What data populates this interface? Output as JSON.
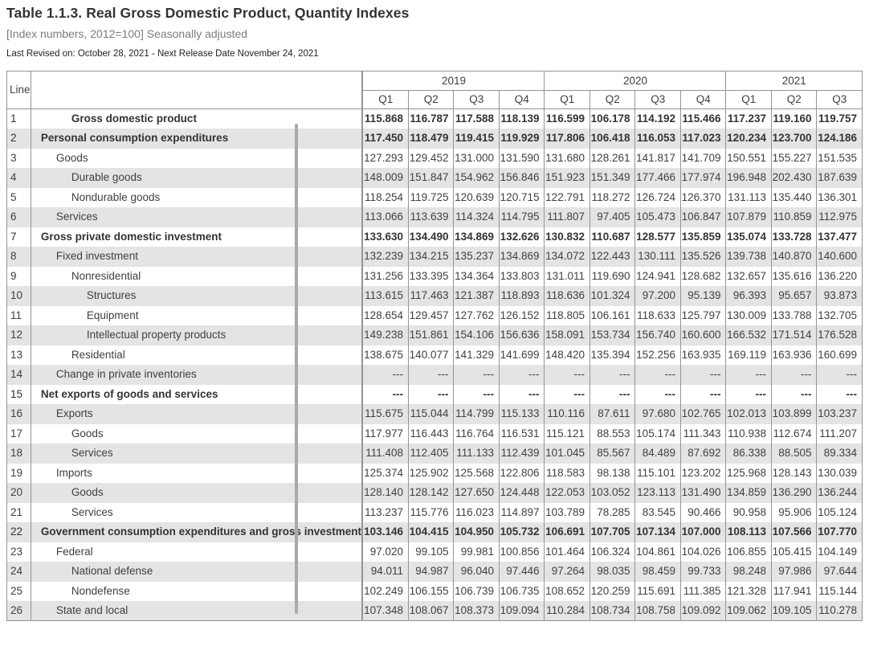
{
  "page": {
    "title": "Table 1.1.3. Real Gross Domestic Product, Quantity Indexes",
    "subtitle": "[Index numbers, 2012=100] Seasonally adjusted",
    "revision_note": "Last Revised on: October 28, 2021 - Next Release Date November 24, 2021"
  },
  "colors": {
    "stripe": "#e4e4e4",
    "border": "#949494",
    "text": "#404040",
    "subtitle_text": "#7c7c7c",
    "scroll_thumb": "#a9a9a9"
  },
  "table": {
    "line_header": "Line",
    "year_groups": [
      {
        "year": "2019",
        "quarters": [
          "Q1",
          "Q2",
          "Q3",
          "Q4"
        ]
      },
      {
        "year": "2020",
        "quarters": [
          "Q1",
          "Q2",
          "Q3",
          "Q4"
        ]
      },
      {
        "year": "2021",
        "quarters": [
          "Q1",
          "Q2",
          "Q3"
        ]
      }
    ],
    "rows": [
      {
        "line": "1",
        "label": "Gross domestic product",
        "indent": 2,
        "bold": true,
        "values": [
          "115.868",
          "116.787",
          "117.588",
          "118.139",
          "116.599",
          "106.178",
          "114.192",
          "115.466",
          "117.237",
          "119.160",
          "119.757"
        ]
      },
      {
        "line": "2",
        "label": "Personal consumption expenditures",
        "indent": 0,
        "bold": true,
        "values": [
          "117.450",
          "118.479",
          "119.415",
          "119.929",
          "117.806",
          "106.418",
          "116.053",
          "117.023",
          "120.234",
          "123.700",
          "124.186"
        ]
      },
      {
        "line": "3",
        "label": "Goods",
        "indent": 1,
        "bold": false,
        "values": [
          "127.293",
          "129.452",
          "131.000",
          "131.590",
          "131.680",
          "128.261",
          "141.817",
          "141.709",
          "150.551",
          "155.227",
          "151.535"
        ]
      },
      {
        "line": "4",
        "label": "Durable goods",
        "indent": 2,
        "bold": false,
        "values": [
          "148.009",
          "151.847",
          "154.962",
          "156.846",
          "151.923",
          "151.349",
          "177.466",
          "177.974",
          "196.948",
          "202.430",
          "187.639"
        ]
      },
      {
        "line": "5",
        "label": "Nondurable goods",
        "indent": 2,
        "bold": false,
        "values": [
          "118.254",
          "119.725",
          "120.639",
          "120.715",
          "122.791",
          "118.272",
          "126.724",
          "126.370",
          "131.113",
          "135.440",
          "136.301"
        ]
      },
      {
        "line": "6",
        "label": "Services",
        "indent": 1,
        "bold": false,
        "values": [
          "113.066",
          "113.639",
          "114.324",
          "114.795",
          "111.807",
          "97.405",
          "105.473",
          "106.847",
          "107.879",
          "110.859",
          "112.975"
        ]
      },
      {
        "line": "7",
        "label": "Gross private domestic investment",
        "indent": 0,
        "bold": true,
        "values": [
          "133.630",
          "134.490",
          "134.869",
          "132.626",
          "130.832",
          "110.687",
          "128.577",
          "135.859",
          "135.074",
          "133.728",
          "137.477"
        ]
      },
      {
        "line": "8",
        "label": "Fixed investment",
        "indent": 1,
        "bold": false,
        "values": [
          "132.239",
          "134.215",
          "135.237",
          "134.869",
          "134.072",
          "122.443",
          "130.111",
          "135.526",
          "139.738",
          "140.870",
          "140.600"
        ]
      },
      {
        "line": "9",
        "label": "Nonresidential",
        "indent": 2,
        "bold": false,
        "values": [
          "131.256",
          "133.395",
          "134.364",
          "133.803",
          "131.011",
          "119.690",
          "124.941",
          "128.682",
          "132.657",
          "135.616",
          "136.220"
        ]
      },
      {
        "line": "10",
        "label": "Structures",
        "indent": 3,
        "bold": false,
        "values": [
          "113.615",
          "117.463",
          "121.387",
          "118.893",
          "118.636",
          "101.324",
          "97.200",
          "95.139",
          "96.393",
          "95.657",
          "93.873"
        ]
      },
      {
        "line": "11",
        "label": "Equipment",
        "indent": 3,
        "bold": false,
        "values": [
          "128.654",
          "129.457",
          "127.762",
          "126.152",
          "118.805",
          "106.161",
          "118.633",
          "125.797",
          "130.009",
          "133.788",
          "132.705"
        ]
      },
      {
        "line": "12",
        "label": "Intellectual property products",
        "indent": 3,
        "bold": false,
        "values": [
          "149.238",
          "151.861",
          "154.106",
          "156.636",
          "158.091",
          "153.734",
          "156.740",
          "160.600",
          "166.532",
          "171.514",
          "176.528"
        ]
      },
      {
        "line": "13",
        "label": "Residential",
        "indent": 2,
        "bold": false,
        "values": [
          "138.675",
          "140.077",
          "141.329",
          "141.699",
          "148.420",
          "135.394",
          "152.256",
          "163.935",
          "169.119",
          "163.936",
          "160.699"
        ]
      },
      {
        "line": "14",
        "label": "Change in private inventories",
        "indent": 1,
        "bold": false,
        "values": [
          "---",
          "---",
          "---",
          "---",
          "---",
          "---",
          "---",
          "---",
          "---",
          "---",
          "---"
        ]
      },
      {
        "line": "15",
        "label": "Net exports of goods and services",
        "indent": 0,
        "bold": true,
        "values": [
          "---",
          "---",
          "---",
          "---",
          "---",
          "---",
          "---",
          "---",
          "---",
          "---",
          "---"
        ]
      },
      {
        "line": "16",
        "label": "Exports",
        "indent": 1,
        "bold": false,
        "values": [
          "115.675",
          "115.044",
          "114.799",
          "115.133",
          "110.116",
          "87.611",
          "97.680",
          "102.765",
          "102.013",
          "103.899",
          "103.237"
        ]
      },
      {
        "line": "17",
        "label": "Goods",
        "indent": 2,
        "bold": false,
        "values": [
          "117.977",
          "116.443",
          "116.764",
          "116.531",
          "115.121",
          "88.553",
          "105.174",
          "111.343",
          "110.938",
          "112.674",
          "111.207"
        ]
      },
      {
        "line": "18",
        "label": "Services",
        "indent": 2,
        "bold": false,
        "values": [
          "111.408",
          "112.405",
          "111.133",
          "112.439",
          "101.045",
          "85.567",
          "84.489",
          "87.692",
          "86.338",
          "88.505",
          "89.334"
        ]
      },
      {
        "line": "19",
        "label": "Imports",
        "indent": 1,
        "bold": false,
        "values": [
          "125.374",
          "125.902",
          "125.568",
          "122.806",
          "118.583",
          "98.138",
          "115.101",
          "123.202",
          "125.968",
          "128.143",
          "130.039"
        ]
      },
      {
        "line": "20",
        "label": "Goods",
        "indent": 2,
        "bold": false,
        "values": [
          "128.140",
          "128.142",
          "127.650",
          "124.448",
          "122.053",
          "103.052",
          "123.113",
          "131.490",
          "134.859",
          "136.290",
          "136.244"
        ]
      },
      {
        "line": "21",
        "label": "Services",
        "indent": 2,
        "bold": false,
        "values": [
          "113.237",
          "115.776",
          "116.023",
          "114.897",
          "103.789",
          "78.285",
          "83.545",
          "90.466",
          "90.958",
          "95.906",
          "105.124"
        ]
      },
      {
        "line": "22",
        "label": "Government consumption expenditures and gross investment",
        "indent": 0,
        "bold": true,
        "values": [
          "103.146",
          "104.415",
          "104.950",
          "105.732",
          "106.691",
          "107.705",
          "107.134",
          "107.000",
          "108.113",
          "107.566",
          "107.770"
        ]
      },
      {
        "line": "23",
        "label": "Federal",
        "indent": 1,
        "bold": false,
        "values": [
          "97.020",
          "99.105",
          "99.981",
          "100.856",
          "101.464",
          "106.324",
          "104.861",
          "104.026",
          "106.855",
          "105.415",
          "104.149"
        ]
      },
      {
        "line": "24",
        "label": "National defense",
        "indent": 2,
        "bold": false,
        "values": [
          "94.011",
          "94.987",
          "96.040",
          "97.446",
          "97.264",
          "98.035",
          "98.459",
          "99.733",
          "98.248",
          "97.986",
          "97.644"
        ]
      },
      {
        "line": "25",
        "label": "Nondefense",
        "indent": 2,
        "bold": false,
        "values": [
          "102.249",
          "106.155",
          "106.739",
          "106.735",
          "108.652",
          "120.259",
          "115.691",
          "111.385",
          "121.328",
          "117.941",
          "115.144"
        ]
      },
      {
        "line": "26",
        "label": "State and local",
        "indent": 1,
        "bold": false,
        "values": [
          "107.348",
          "108.067",
          "108.373",
          "109.094",
          "110.284",
          "108.734",
          "108.758",
          "109.092",
          "109.062",
          "109.105",
          "110.278"
        ]
      }
    ]
  }
}
